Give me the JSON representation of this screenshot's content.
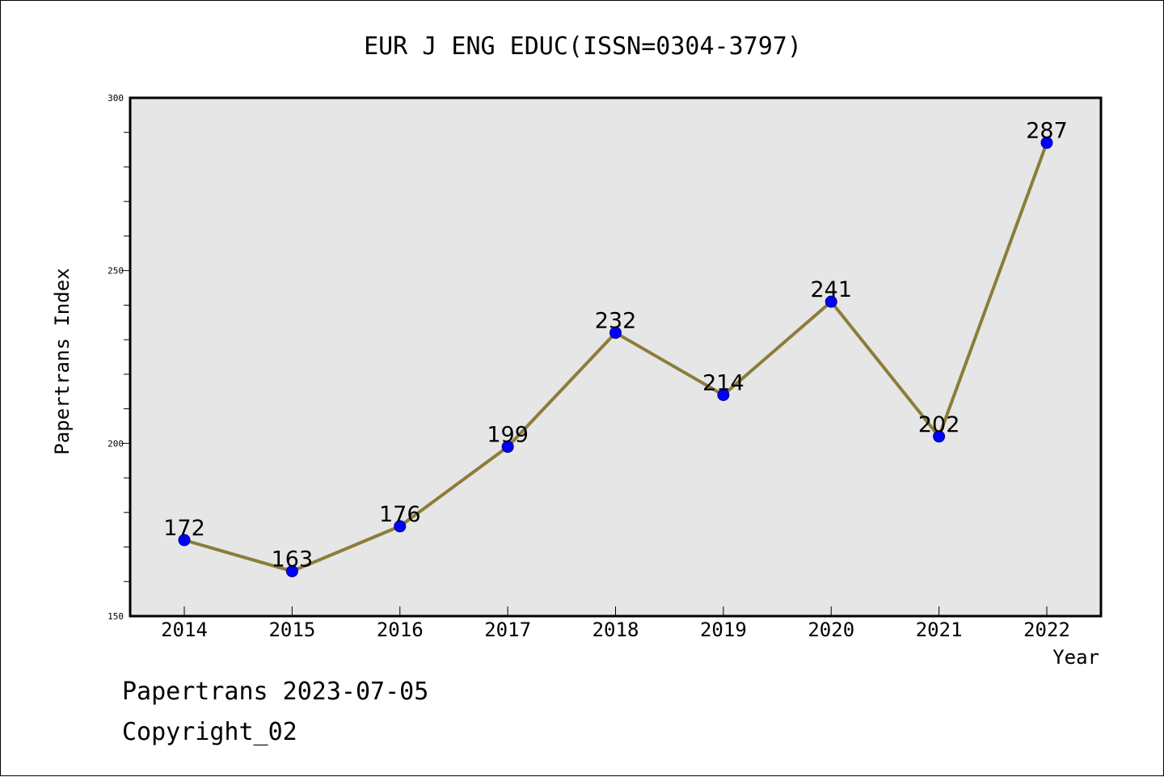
{
  "chart_data": {
    "type": "line",
    "title": "EUR J ENG EDUC(ISSN=0304-3797)",
    "xlabel": "Year",
    "ylabel": "Papertrans Index",
    "ylim": [
      150,
      300
    ],
    "yticks": [
      150,
      200,
      250,
      300
    ],
    "grid": false,
    "categories": [
      "2014",
      "2015",
      "2016",
      "2017",
      "2018",
      "2019",
      "2020",
      "2021",
      "2022"
    ],
    "series": [
      {
        "values": [
          172,
          163,
          176,
          199,
          232,
          214,
          241,
          202,
          287
        ]
      }
    ],
    "colors": {
      "line": "#8b7d3a",
      "marker": "#0000ff",
      "plot_background": "#e6e6e6"
    }
  },
  "footer": {
    "line1": "Papertrans 2023-07-05",
    "line2": "Copyright_02"
  }
}
